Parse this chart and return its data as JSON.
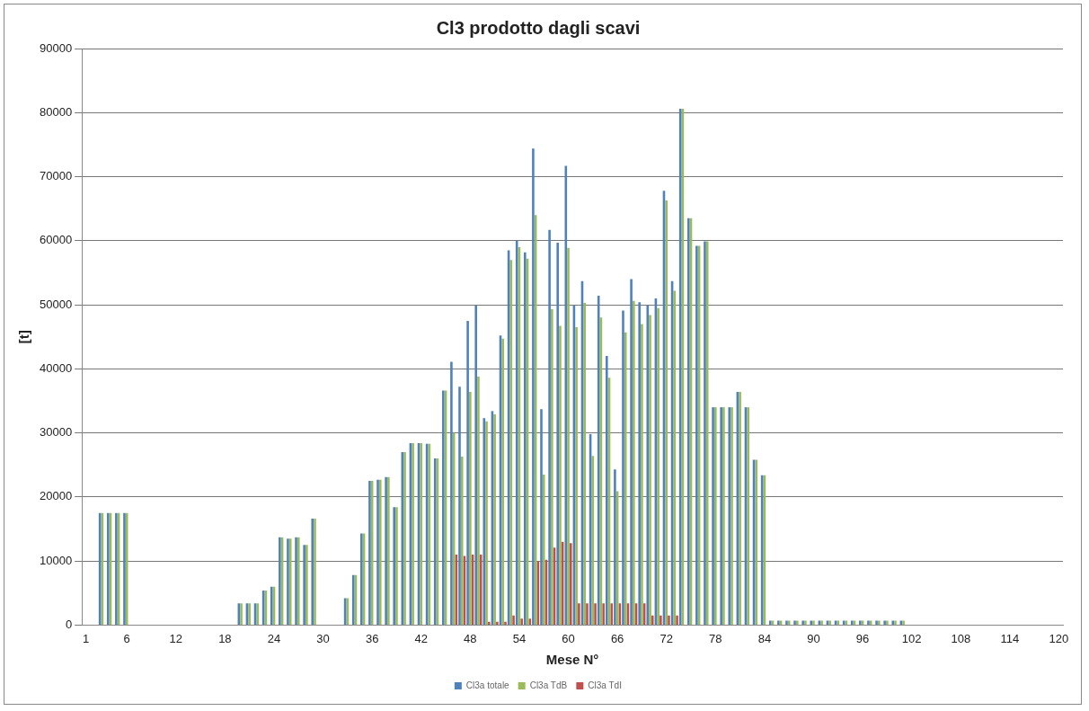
{
  "chart_data": {
    "type": "bar",
    "title": "Cl3 prodotto dagli scavi",
    "xlabel": "Mese N°",
    "ylabel": "[t]",
    "categories": [
      "1",
      null,
      null,
      null,
      null,
      "6",
      null,
      null,
      null,
      null,
      null,
      "12",
      null,
      null,
      null,
      null,
      null,
      "18",
      null,
      null,
      null,
      null,
      null,
      "24",
      null,
      null,
      null,
      null,
      null,
      "30",
      null,
      null,
      null,
      null,
      null,
      "36",
      null,
      null,
      null,
      null,
      null,
      "42",
      null,
      null,
      null,
      null,
      null,
      "48",
      null,
      null,
      null,
      null,
      null,
      "54",
      null,
      null,
      null,
      null,
      null,
      "60",
      null,
      null,
      null,
      null,
      null,
      "66",
      null,
      null,
      null,
      null,
      null,
      "72",
      null,
      null,
      null,
      null,
      null,
      "78",
      null,
      null,
      null,
      null,
      null,
      "84",
      null,
      null,
      null,
      null,
      null,
      "90",
      null,
      null,
      null,
      null,
      null,
      "96",
      null,
      null,
      null,
      null,
      null,
      "102",
      null,
      null,
      null,
      null,
      null,
      "108",
      null,
      null,
      null,
      null,
      null,
      "114",
      null,
      null,
      null,
      null,
      null,
      "120"
    ],
    "series": [
      {
        "name": "Cl3a totale",
        "color": "#4f81bd",
        "values": [
          0,
          0,
          17500,
          17500,
          17500,
          17500,
          0,
          0,
          0,
          0,
          0,
          0,
          0,
          0,
          0,
          0,
          0,
          0,
          0,
          3400,
          3400,
          3400,
          5400,
          6000,
          13700,
          13500,
          13700,
          12500,
          16600,
          0,
          0,
          0,
          4200,
          7800,
          14300,
          22500,
          22700,
          23100,
          18400,
          27000,
          28400,
          28400,
          28300,
          26000,
          36600,
          41100,
          37200,
          47500,
          49900,
          32300,
          33400,
          45200,
          58500,
          60000,
          58200,
          74400,
          33700,
          61700,
          59700,
          71700,
          49900,
          53700,
          29800,
          51400,
          42000,
          24300,
          49100,
          54000,
          50400,
          49900,
          51000,
          67800,
          53700,
          80600,
          63500,
          59200,
          59900,
          34000,
          34000,
          34000,
          36400,
          34000,
          25800,
          23400,
          700,
          700,
          700,
          700,
          700,
          700,
          700,
          700,
          700,
          700,
          700,
          700,
          700,
          700,
          700,
          700,
          700,
          0,
          0,
          0,
          0,
          0,
          0,
          0,
          0,
          0,
          0,
          0,
          0,
          0,
          0,
          0,
          0,
          0,
          0,
          0
        ]
      },
      {
        "name": "Cl3a TdB",
        "color": "#9bbb59",
        "values": [
          0,
          0,
          17500,
          17500,
          17500,
          17500,
          0,
          0,
          0,
          0,
          0,
          0,
          0,
          0,
          0,
          0,
          0,
          0,
          0,
          3400,
          3400,
          3400,
          5400,
          6000,
          13700,
          13500,
          13700,
          12500,
          16600,
          0,
          0,
          0,
          4200,
          7800,
          14300,
          22500,
          22700,
          23100,
          18400,
          27000,
          28400,
          28400,
          28300,
          26000,
          36600,
          30000,
          26300,
          36400,
          38800,
          31800,
          32900,
          44700,
          57000,
          59000,
          57200,
          64000,
          23500,
          49300,
          46700,
          58900,
          46500,
          50300,
          26400,
          48000,
          38600,
          20900,
          45700,
          50600,
          47000,
          48400,
          49500,
          66300,
          52200,
          80600,
          63500,
          59200,
          59900,
          34000,
          34000,
          34000,
          36400,
          34000,
          25800,
          23400,
          700,
          700,
          700,
          700,
          700,
          700,
          700,
          700,
          700,
          700,
          700,
          700,
          700,
          700,
          700,
          700,
          700,
          0,
          0,
          0,
          0,
          0,
          0,
          0,
          0,
          0,
          0,
          0,
          0,
          0,
          0,
          0,
          0,
          0,
          0,
          0
        ]
      },
      {
        "name": "Cl3a TdI",
        "color": "#c0504d",
        "values": [
          0,
          0,
          0,
          0,
          0,
          0,
          0,
          0,
          0,
          0,
          0,
          0,
          0,
          0,
          0,
          0,
          0,
          0,
          0,
          0,
          0,
          0,
          0,
          0,
          0,
          0,
          0,
          0,
          0,
          0,
          0,
          0,
          0,
          0,
          0,
          0,
          0,
          0,
          0,
          0,
          0,
          0,
          0,
          0,
          0,
          11000,
          10800,
          11000,
          11000,
          500,
          500,
          500,
          1500,
          1000,
          1000,
          10000,
          10200,
          12100,
          13000,
          12800,
          3400,
          3400,
          3400,
          3400,
          3400,
          3400,
          3400,
          3400,
          3400,
          1500,
          1500,
          1500,
          1500,
          0,
          0,
          0,
          0,
          0,
          0,
          0,
          0,
          0,
          0,
          0,
          0,
          0,
          0,
          0,
          0,
          0,
          0,
          0,
          0,
          0,
          0,
          0,
          0,
          0,
          0,
          0,
          0,
          0,
          0,
          0,
          0,
          0,
          0,
          0,
          0,
          0,
          0,
          0,
          0,
          0,
          0,
          0,
          0,
          0,
          0,
          0
        ]
      }
    ],
    "ylim": [
      0,
      90000
    ],
    "yticks": [
      0,
      10000,
      20000,
      30000,
      40000,
      50000,
      60000,
      70000,
      80000,
      90000
    ],
    "grid": "y",
    "legend": "bottom"
  }
}
